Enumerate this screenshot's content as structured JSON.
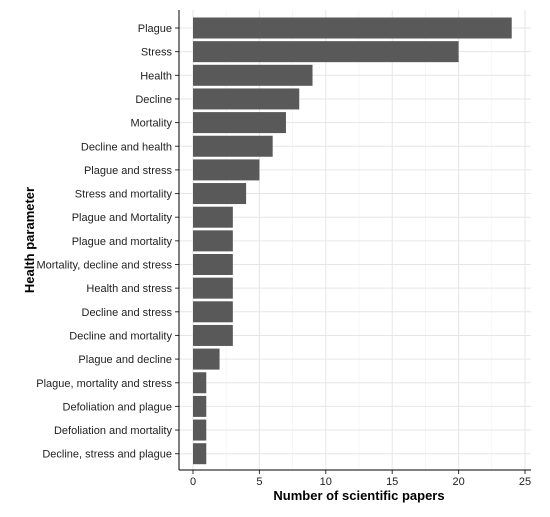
{
  "chart_data": {
    "type": "bar",
    "orientation": "horizontal",
    "title": "",
    "xlabel": "Number of scientific papers",
    "ylabel": "Health parameter",
    "xlim": [
      0,
      25
    ],
    "x_ticks": [
      "0",
      "5",
      "10",
      "15",
      "20",
      "25"
    ],
    "grid": true,
    "bar_color": "#595959",
    "categories": [
      "Plague",
      "Stress",
      "Health",
      "Decline",
      "Mortality",
      "Decline and health",
      "Plague and stress",
      "Stress and mortality",
      "Plague and Mortality",
      "Plague and mortality",
      "Mortality, decline and stress",
      "Health and stress",
      "Decline and stress",
      "Decline and mortality",
      "Plague and decline",
      "Plague, mortality and stress",
      "Defoliation and plague",
      "Defoliation and mortality",
      "Decline, stress and plague"
    ],
    "values": [
      24,
      20,
      9,
      8,
      7,
      6,
      5,
      4,
      3,
      3,
      3,
      3,
      3,
      3,
      2,
      1,
      1,
      1,
      1
    ]
  }
}
